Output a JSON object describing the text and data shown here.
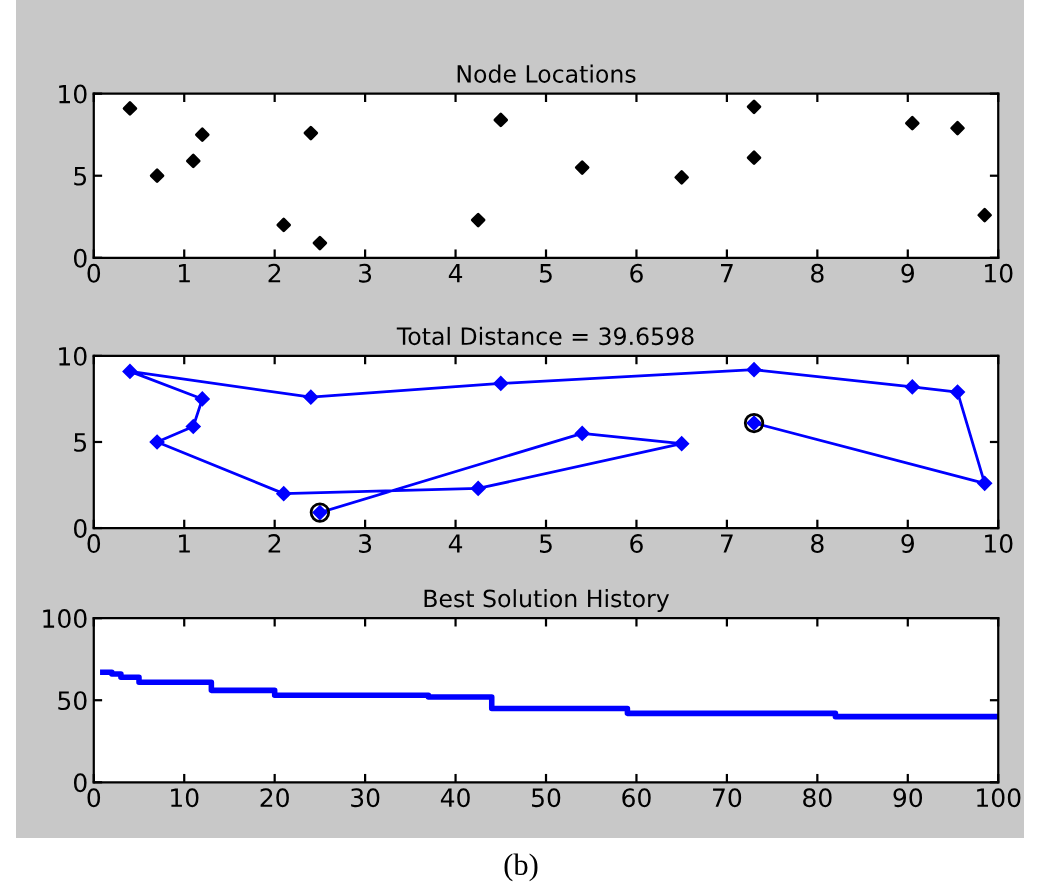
{
  "chart_data": [
    {
      "type": "scatter",
      "title": "Node Locations",
      "x": [
        0.4,
        0.7,
        1.1,
        1.2,
        2.1,
        2.4,
        2.5,
        4.25,
        4.5,
        5.4,
        6.5,
        7.3,
        7.3,
        9.05,
        9.55,
        9.85
      ],
      "values": [
        9.1,
        5.0,
        5.9,
        7.5,
        2.0,
        7.6,
        0.9,
        2.3,
        8.4,
        5.5,
        4.9,
        9.2,
        6.1,
        8.2,
        7.9,
        2.6
      ],
      "color": "#000000",
      "marker": "diamond",
      "xlim": [
        0,
        10
      ],
      "ylim": [
        0,
        10
      ],
      "xticks": [
        0,
        1,
        2,
        3,
        4,
        5,
        6,
        7,
        8,
        9,
        10
      ],
      "yticks": [
        0,
        5,
        10
      ],
      "grid": false,
      "legend": false
    },
    {
      "type": "line",
      "title": "Total Distance = 39.6598",
      "series": [
        {
          "type": "line",
          "color": "#0000ff",
          "marker": "diamond",
          "x": [
            2.5,
            5.4,
            6.5,
            4.25,
            2.1,
            0.7,
            1.1,
            1.2,
            0.4,
            2.4,
            4.5,
            7.3,
            9.05,
            9.55,
            9.85,
            7.3
          ],
          "values": [
            0.9,
            5.5,
            4.9,
            2.3,
            2.0,
            5.0,
            5.9,
            7.5,
            9.1,
            7.6,
            8.4,
            9.2,
            8.2,
            7.9,
            2.6,
            6.1
          ]
        },
        {
          "type": "scatter",
          "color": "#000000",
          "marker": "circle",
          "x": [
            2.5,
            7.3
          ],
          "values": [
            0.9,
            6.1
          ]
        }
      ],
      "xlim": [
        0,
        10
      ],
      "ylim": [
        0,
        10
      ],
      "xticks": [
        0,
        1,
        2,
        3,
        4,
        5,
        6,
        7,
        8,
        9,
        10
      ],
      "yticks": [
        0,
        5,
        10
      ],
      "grid": false,
      "legend": false
    },
    {
      "type": "step",
      "title": "Best Solution History",
      "x": [
        1,
        2,
        3,
        5,
        13,
        20,
        37,
        44,
        59,
        82,
        100
      ],
      "values": [
        67,
        66,
        64,
        61,
        56,
        53,
        52,
        45,
        42,
        40,
        40
      ],
      "color": "#0000ff",
      "marker": "none",
      "line_style": "solid",
      "xlim": [
        0,
        100
      ],
      "ylim": [
        0,
        100
      ],
      "xticks": [
        0,
        10,
        20,
        30,
        40,
        50,
        60,
        70,
        80,
        90,
        100
      ],
      "yticks": [
        0,
        50,
        100
      ],
      "grid": false,
      "legend": false,
      "annotations": [
        "(b)"
      ]
    }
  ]
}
